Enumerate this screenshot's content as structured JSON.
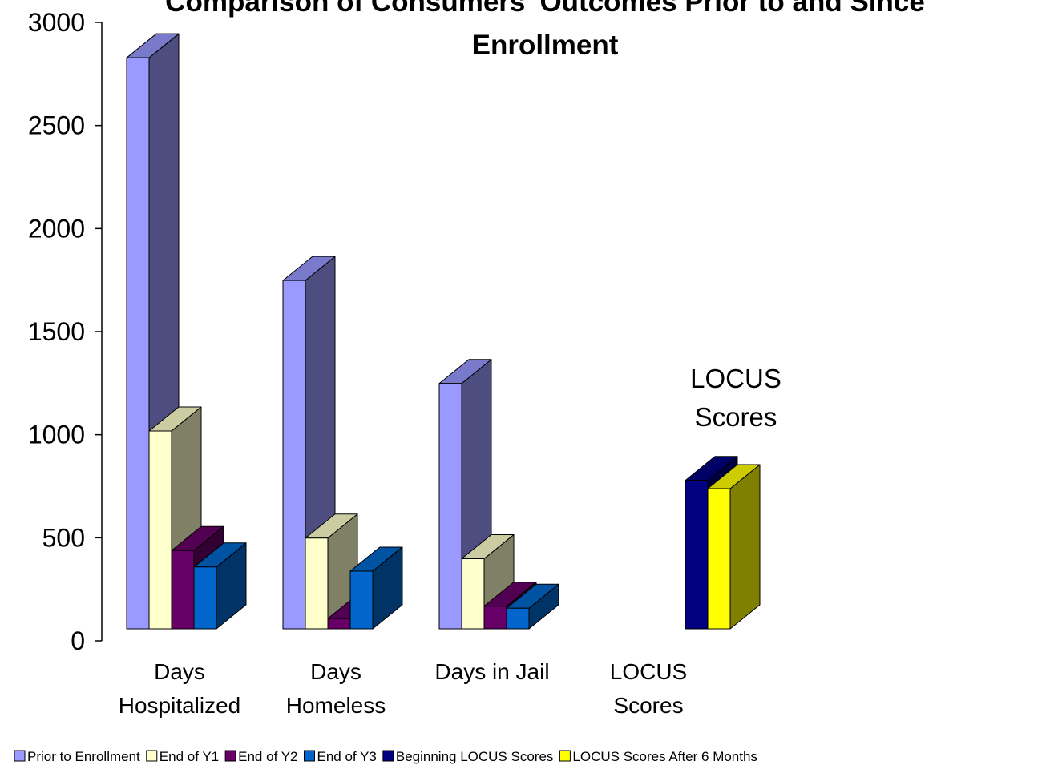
{
  "chart_data": {
    "type": "bar3d",
    "title": "Comparison of Consumers' Outcomes Prior to and Since Enrollment",
    "annotation": "LOCUS Scores",
    "categories": [
      "Days Hospitalized",
      "Days Homeless",
      "Days in Jail",
      "LOCUS Scores"
    ],
    "series": [
      {
        "name": "Prior to Enrollment",
        "color": "#9999ff",
        "values": [
          2770,
          1690,
          1190,
          null
        ]
      },
      {
        "name": "End of Y1",
        "color": "#ffffcc",
        "values": [
          960,
          440,
          340,
          null
        ]
      },
      {
        "name": "End of Y2",
        "color": "#660066",
        "values": [
          380,
          50,
          110,
          null
        ]
      },
      {
        "name": "End of Y3",
        "color": "#0066cc",
        "values": [
          300,
          280,
          100,
          null
        ]
      },
      {
        "name": "Beginning LOCUS Scores",
        "color": "#000080",
        "values": [
          null,
          null,
          null,
          720
        ]
      },
      {
        "name": "LOCUS Scores After 6 Months",
        "color": "#ffff00",
        "values": [
          null,
          null,
          null,
          680
        ]
      }
    ],
    "ylim": [
      0,
      3000
    ],
    "yticks": [
      0,
      500,
      1000,
      1500,
      2000,
      2500,
      3000
    ]
  }
}
